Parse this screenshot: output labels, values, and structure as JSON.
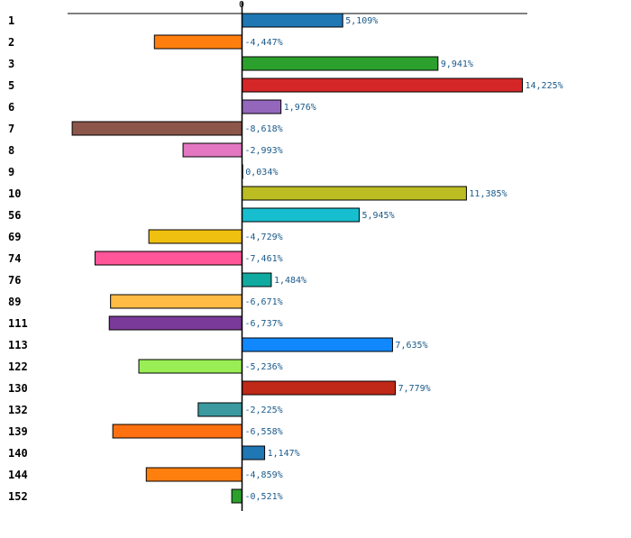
{
  "chart_data": {
    "type": "bar",
    "orientation": "horizontal",
    "zero_label": "0",
    "categories": [
      "1",
      "2",
      "3",
      "5",
      "6",
      "7",
      "8",
      "9",
      "10",
      "56",
      "69",
      "74",
      "76",
      "89",
      "111",
      "113",
      "122",
      "130",
      "132",
      "139",
      "140",
      "144",
      "152"
    ],
    "values": [
      5.109,
      -4.447,
      9.941,
      14.225,
      1.976,
      -8.618,
      -2.993,
      0.034,
      11.385,
      5.945,
      -4.729,
      -7.461,
      1.484,
      -6.671,
      -6.737,
      7.635,
      -5.236,
      7.779,
      -2.225,
      -6.558,
      1.147,
      -4.859,
      -0.521
    ],
    "value_labels": [
      "5,109%",
      "-4,447%",
      "9,941%",
      "14,225%",
      "1,976%",
      "-8,618%",
      "-2,993%",
      "0,034%",
      "11,385%",
      "5,945%",
      "-4,729%",
      "-7,461%",
      "1,484%",
      "-6,671%",
      "-6,737%",
      "7,635%",
      "-5,236%",
      "7,779%",
      "-2,225%",
      "-6,558%",
      "1,147%",
      "-4,859%",
      "-0,521%"
    ],
    "colors": [
      "#1f77b4",
      "#ff7f0e",
      "#2ca02c",
      "#d62728",
      "#9467bd",
      "#8c564b",
      "#e377c2",
      "#7f7f7f",
      "#bcbd22",
      "#17becf",
      "#f0c010",
      "#ff5599",
      "#10aaa0",
      "#ffbb44",
      "#7a3a9a",
      "#1188ff",
      "#99ee55",
      "#c02818",
      "#3a9aa0",
      "#ff7010",
      "#1f77b4",
      "#ff7f0e",
      "#2ca02c"
    ],
    "xlim": [
      -8.85,
      14.225
    ],
    "grid": false,
    "legend": "none"
  }
}
